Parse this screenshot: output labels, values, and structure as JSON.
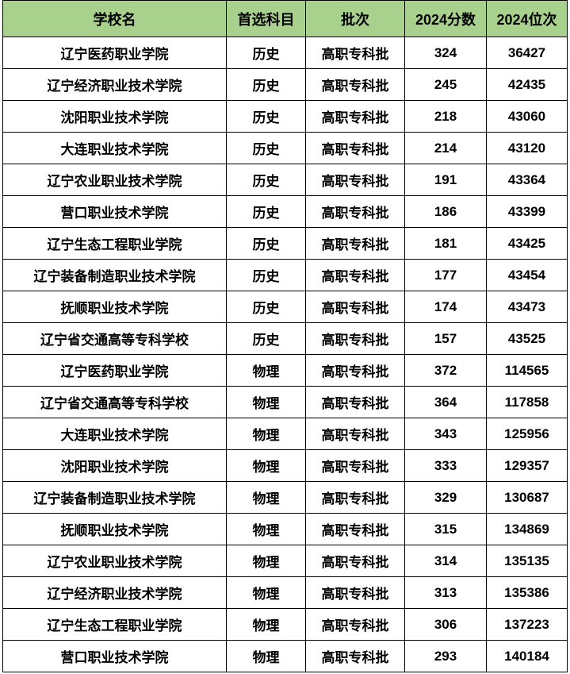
{
  "colors": {
    "header_bg": "#a9d18e",
    "border": "#000000",
    "row_bg": "#ffffff",
    "text": "#000000"
  },
  "table": {
    "columns": [
      {
        "key": "school",
        "label": "学校名"
      },
      {
        "key": "subject",
        "label": "首选科目"
      },
      {
        "key": "batch",
        "label": "批次"
      },
      {
        "key": "score",
        "label": "2024分数"
      },
      {
        "key": "rank",
        "label": "2024位次"
      }
    ],
    "rows": [
      {
        "school": "辽宁医药职业学院",
        "subject": "历史",
        "batch": "高职专科批",
        "score": "324",
        "rank": "36427"
      },
      {
        "school": "辽宁经济职业技术学院",
        "subject": "历史",
        "batch": "高职专科批",
        "score": "245",
        "rank": "42435"
      },
      {
        "school": "沈阳职业技术学院",
        "subject": "历史",
        "batch": "高职专科批",
        "score": "218",
        "rank": "43060"
      },
      {
        "school": "大连职业技术学院",
        "subject": "历史",
        "batch": "高职专科批",
        "score": "214",
        "rank": "43120"
      },
      {
        "school": "辽宁农业职业技术学院",
        "subject": "历史",
        "batch": "高职专科批",
        "score": "191",
        "rank": "43364"
      },
      {
        "school": "营口职业技术学院",
        "subject": "历史",
        "batch": "高职专科批",
        "score": "186",
        "rank": "43399"
      },
      {
        "school": "辽宁生态工程职业学院",
        "subject": "历史",
        "batch": "高职专科批",
        "score": "181",
        "rank": "43425"
      },
      {
        "school": "辽宁装备制造职业技术学院",
        "subject": "历史",
        "batch": "高职专科批",
        "score": "177",
        "rank": "43454"
      },
      {
        "school": "抚顺职业技术学院",
        "subject": "历史",
        "batch": "高职专科批",
        "score": "174",
        "rank": "43473"
      },
      {
        "school": "辽宁省交通高等专科学校",
        "subject": "历史",
        "batch": "高职专科批",
        "score": "157",
        "rank": "43525"
      },
      {
        "school": "辽宁医药职业学院",
        "subject": "物理",
        "batch": "高职专科批",
        "score": "372",
        "rank": "114565"
      },
      {
        "school": "辽宁省交通高等专科学校",
        "subject": "物理",
        "batch": "高职专科批",
        "score": "364",
        "rank": "117858"
      },
      {
        "school": "大连职业技术学院",
        "subject": "物理",
        "batch": "高职专科批",
        "score": "343",
        "rank": "125956"
      },
      {
        "school": "沈阳职业技术学院",
        "subject": "物理",
        "batch": "高职专科批",
        "score": "333",
        "rank": "129357"
      },
      {
        "school": "辽宁装备制造职业技术学院",
        "subject": "物理",
        "batch": "高职专科批",
        "score": "329",
        "rank": "130687"
      },
      {
        "school": "抚顺职业技术学院",
        "subject": "物理",
        "batch": "高职专科批",
        "score": "315",
        "rank": "134869"
      },
      {
        "school": "辽宁农业职业技术学院",
        "subject": "物理",
        "batch": "高职专科批",
        "score": "314",
        "rank": "135135"
      },
      {
        "school": "辽宁经济职业技术学院",
        "subject": "物理",
        "batch": "高职专科批",
        "score": "313",
        "rank": "135386"
      },
      {
        "school": "辽宁生态工程职业学院",
        "subject": "物理",
        "batch": "高职专科批",
        "score": "306",
        "rank": "137223"
      },
      {
        "school": "营口职业技术学院",
        "subject": "物理",
        "batch": "高职专科批",
        "score": "293",
        "rank": "140184"
      }
    ]
  },
  "chart_data": {
    "type": "table",
    "title": "",
    "columns": [
      "学校名",
      "首选科目",
      "批次",
      "2024分数",
      "2024位次"
    ],
    "rows": [
      [
        "辽宁医药职业学院",
        "历史",
        "高职专科批",
        324,
        36427
      ],
      [
        "辽宁经济职业技术学院",
        "历史",
        "高职专科批",
        245,
        42435
      ],
      [
        "沈阳职业技术学院",
        "历史",
        "高职专科批",
        218,
        43060
      ],
      [
        "大连职业技术学院",
        "历史",
        "高职专科批",
        214,
        43120
      ],
      [
        "辽宁农业职业技术学院",
        "历史",
        "高职专科批",
        191,
        43364
      ],
      [
        "营口职业技术学院",
        "历史",
        "高职专科批",
        186,
        43399
      ],
      [
        "辽宁生态工程职业学院",
        "历史",
        "高职专科批",
        181,
        43425
      ],
      [
        "辽宁装备制造职业技术学院",
        "历史",
        "高职专科批",
        177,
        43454
      ],
      [
        "抚顺职业技术学院",
        "历史",
        "高职专科批",
        174,
        43473
      ],
      [
        "辽宁省交通高等专科学校",
        "历史",
        "高职专科批",
        157,
        43525
      ],
      [
        "辽宁医药职业学院",
        "物理",
        "高职专科批",
        372,
        114565
      ],
      [
        "辽宁省交通高等专科学校",
        "物理",
        "高职专科批",
        364,
        117858
      ],
      [
        "大连职业技术学院",
        "物理",
        "高职专科批",
        343,
        125956
      ],
      [
        "沈阳职业技术学院",
        "物理",
        "高职专科批",
        333,
        129357
      ],
      [
        "辽宁装备制造职业技术学院",
        "物理",
        "高职专科批",
        329,
        130687
      ],
      [
        "抚顺职业技术学院",
        "物理",
        "高职专科批",
        315,
        134869
      ],
      [
        "辽宁农业职业技术学院",
        "物理",
        "高职专科批",
        314,
        135135
      ],
      [
        "辽宁经济职业技术学院",
        "物理",
        "高职专科批",
        313,
        135386
      ],
      [
        "辽宁生态工程职业学院",
        "物理",
        "高职专科批",
        306,
        137223
      ],
      [
        "营口职业技术学院",
        "物理",
        "高职专科批",
        293,
        140184
      ]
    ]
  }
}
